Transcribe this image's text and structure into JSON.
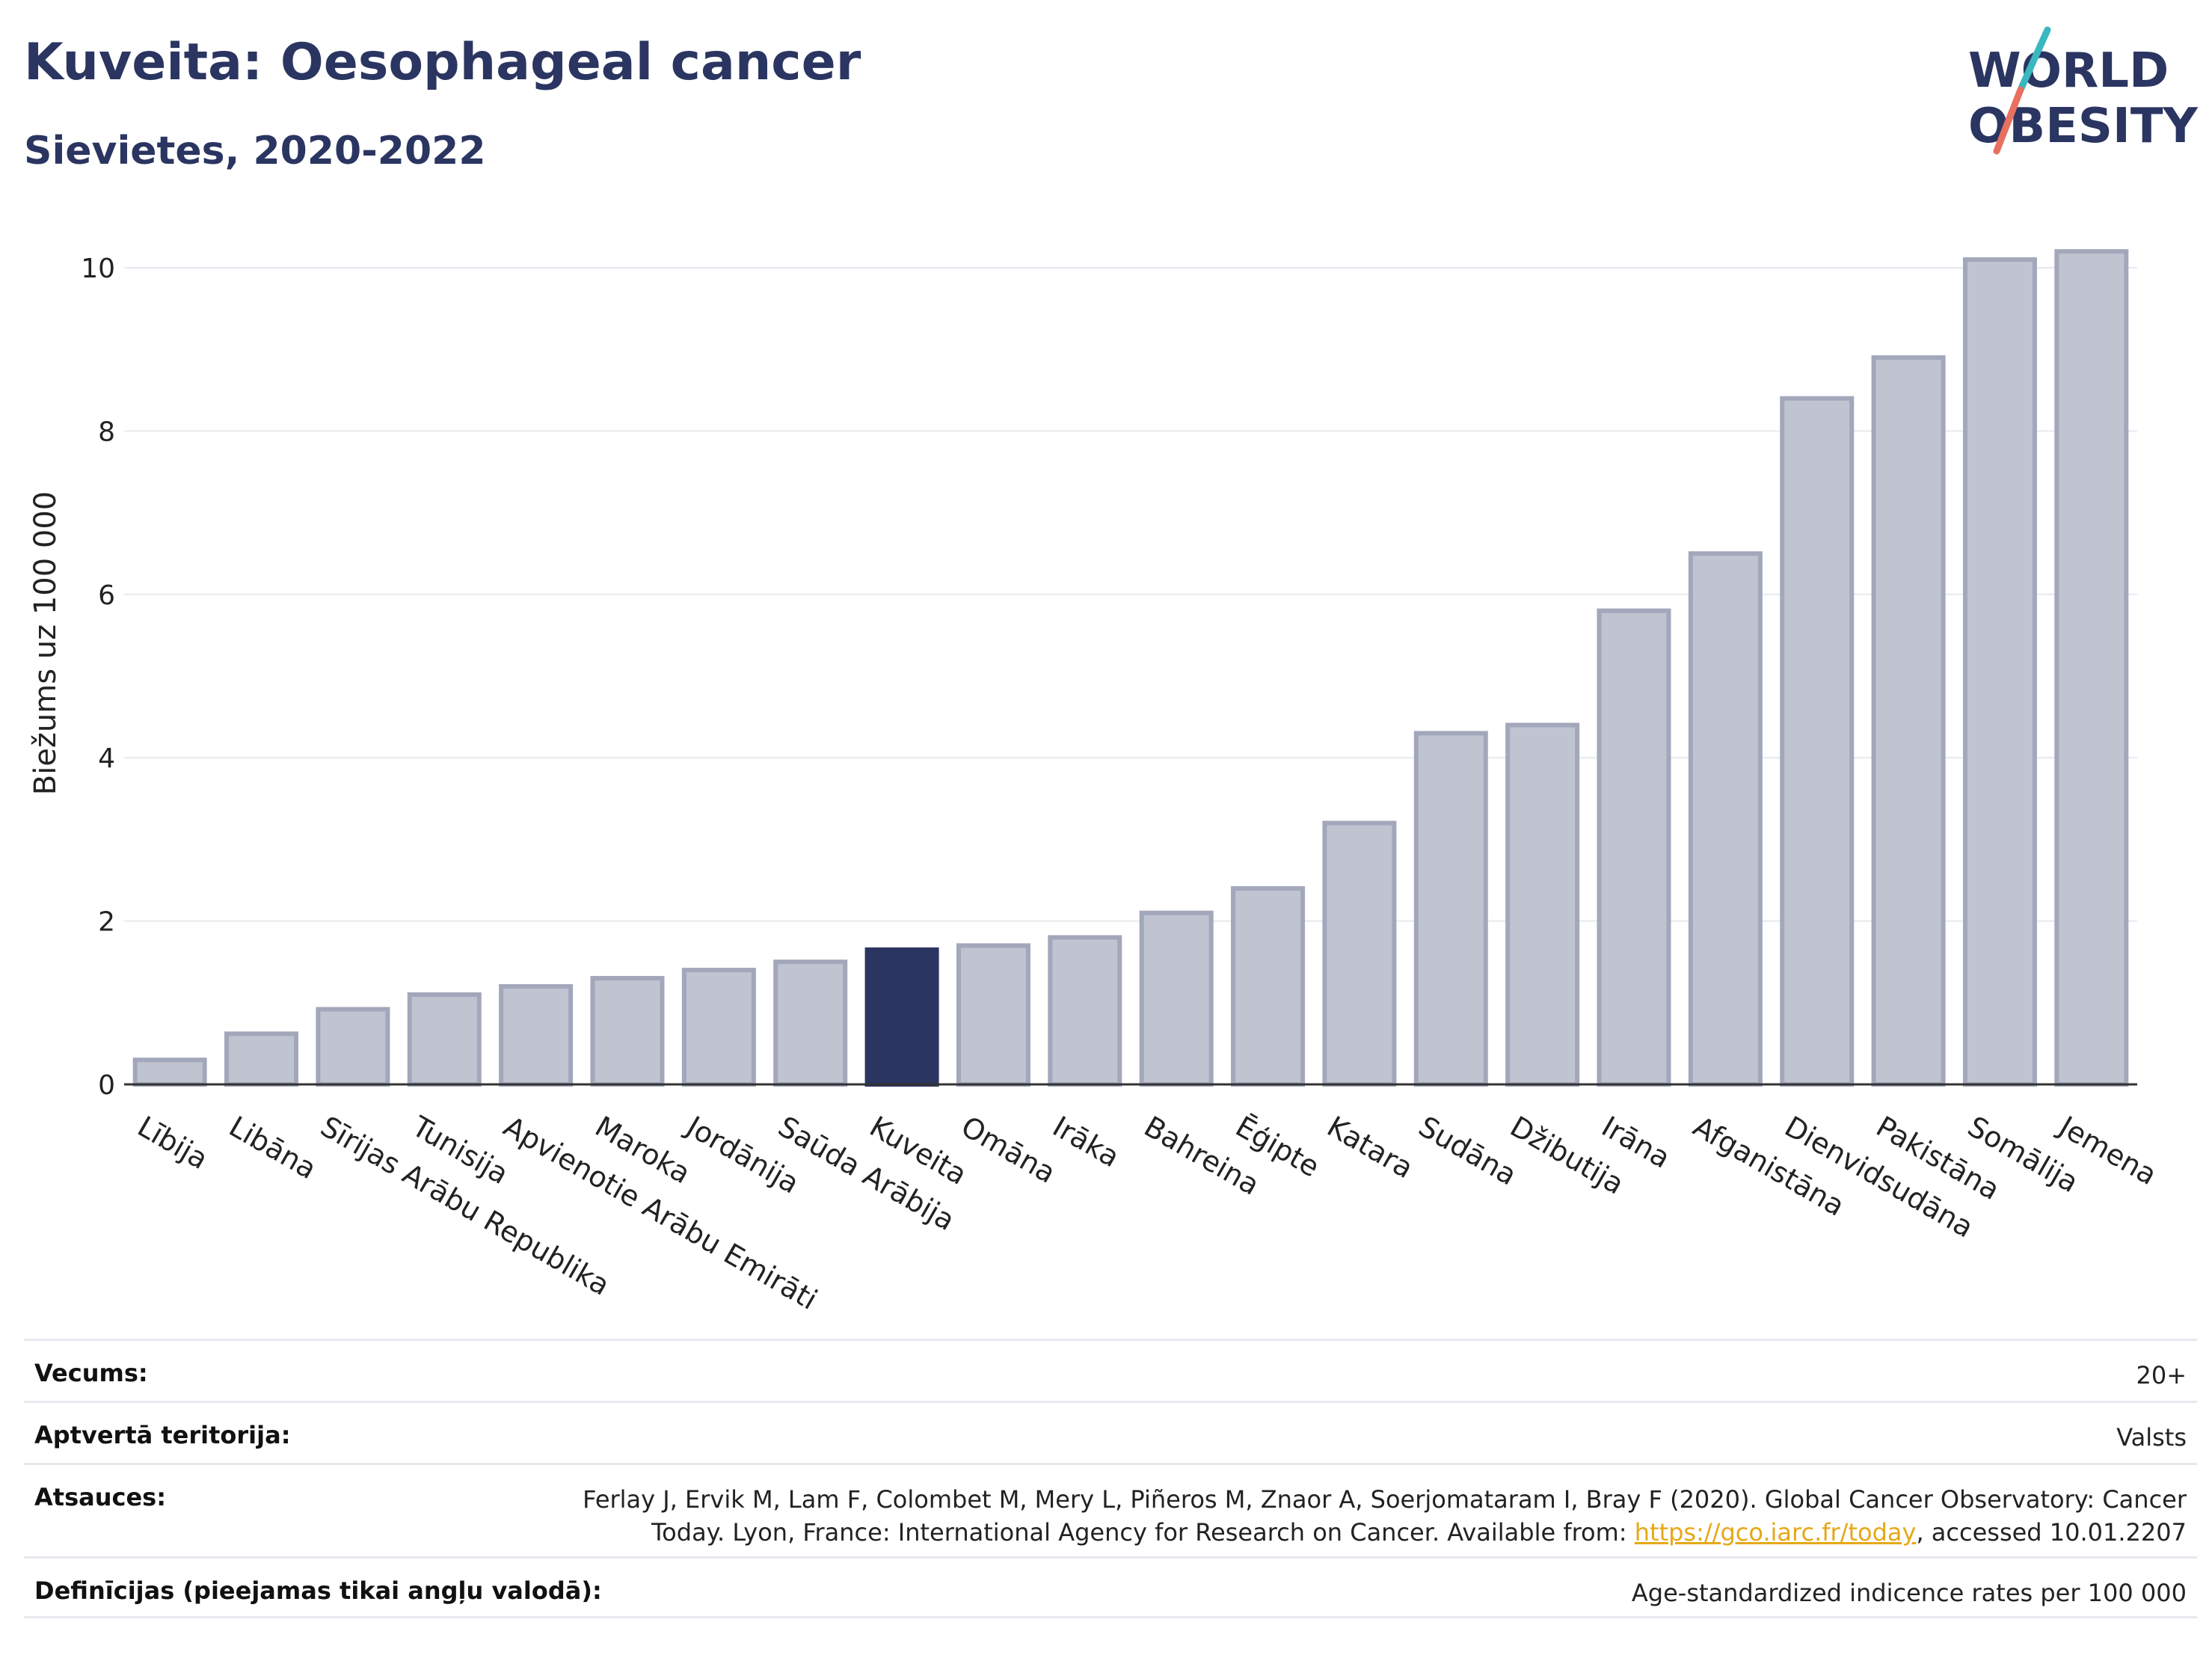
{
  "header": {
    "title": "Kuveita: Oesophageal cancer",
    "subtitle": "Sievietes, 2020-2022"
  },
  "logo": {
    "line1": "WORLD",
    "line2": "OBESITY",
    "colors": {
      "text": "#2b3561",
      "slash_top": "#3ab7bf",
      "slash_bottom": "#e8705f"
    }
  },
  "colors": {
    "bar": "#c0c3d0",
    "bar_border": "#a2a7bb",
    "highlight": "#2b3561",
    "grid": "#e6e9ee",
    "axis": "#333333"
  },
  "chart_data": {
    "type": "bar",
    "ylabel": "Biežums uz 100 000",
    "ylim": [
      0,
      10.5
    ],
    "yticks": [
      0,
      2,
      4,
      6,
      8,
      10
    ],
    "grid": true,
    "highlight": "Kuveita",
    "categories": [
      "Lībija",
      "Libāna",
      "Sīrijas Arābu Republika",
      "Tunisija",
      "Apvienotie Arābu Emirāti",
      "Maroka",
      "Jordānija",
      "Saūda Arābija",
      "Kuveita",
      "Omāna",
      "Irāka",
      "Bahreina",
      "Ēģipte",
      "Katara",
      "Sudāna",
      "Džibutija",
      "Irāna",
      "Afganistāna",
      "Dienvidsudāna",
      "Pakistāna",
      "Somālija",
      "Jemena"
    ],
    "values": [
      0.3,
      0.62,
      0.92,
      1.1,
      1.2,
      1.3,
      1.4,
      1.5,
      1.65,
      1.7,
      1.8,
      2.1,
      2.4,
      3.2,
      4.3,
      4.4,
      5.8,
      6.5,
      8.4,
      8.9,
      10.1,
      10.2
    ]
  },
  "meta": [
    {
      "label": "Vecums:",
      "value": "20+"
    },
    {
      "label": "Aptvertā teritorija:",
      "value": "Valsts"
    },
    {
      "label": "Atsauces:",
      "value_line1": "Ferlay J, Ervik M, Lam F, Colombet M, Mery L, Piñeros M, Znaor A, Soerjomataram I, Bray F (2020). Global Cancer Observatory: Cancer",
      "value_line2_pre": "Today. Lyon, France: International Agency for Research on Cancer. Available from: ",
      "link": "https://gco.iarc.fr/today",
      "value_line2_post": ", accessed 10.01.2207"
    },
    {
      "label": "Definīcijas (pieejamas tikai angļu valodā):",
      "value": "Age-standardized indicence rates per 100 000"
    }
  ]
}
